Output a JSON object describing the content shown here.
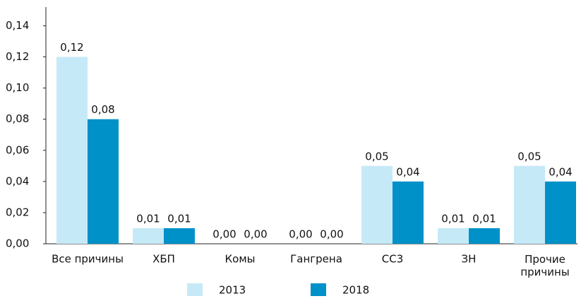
{
  "chart_data": {
    "type": "bar",
    "categories": [
      "Все причины",
      "ХБП",
      "Комы",
      "Гангрена",
      "СС3",
      "ЗН",
      "Прочие причины"
    ],
    "series": [
      {
        "name": "2013",
        "color": "#c6e9f8",
        "values": [
          0.12,
          0.01,
          0,
          0,
          0.05,
          0.01,
          0.05
        ],
        "value_labels": [
          "0,12",
          "0,01",
          "0,00",
          "0,00",
          "0,05",
          "0,01",
          "0,05"
        ]
      },
      {
        "name": "2018",
        "color": "#0091c9",
        "values": [
          0.08,
          0.01,
          0,
          0,
          0.04,
          0.01,
          0.04
        ],
        "value_labels": [
          "0,08",
          "0,01",
          "0,00",
          "0,00",
          "0,04",
          "0,01",
          "0,04"
        ]
      }
    ],
    "ylim": [
      0,
      0.152
    ],
    "yticks": [
      {
        "value": 0,
        "label": "0,00"
      },
      {
        "value": 0.02,
        "label": "0,02"
      },
      {
        "value": 0.04,
        "label": "0,04"
      },
      {
        "value": 0.06,
        "label": "0,06"
      },
      {
        "value": 0.08,
        "label": "0,08"
      },
      {
        "value": 0.1,
        "label": "0,10"
      },
      {
        "value": 0.12,
        "label": "0,12"
      },
      {
        "value": 0.14,
        "label": "0,14"
      }
    ],
    "legend": "bottom",
    "grid": false
  }
}
